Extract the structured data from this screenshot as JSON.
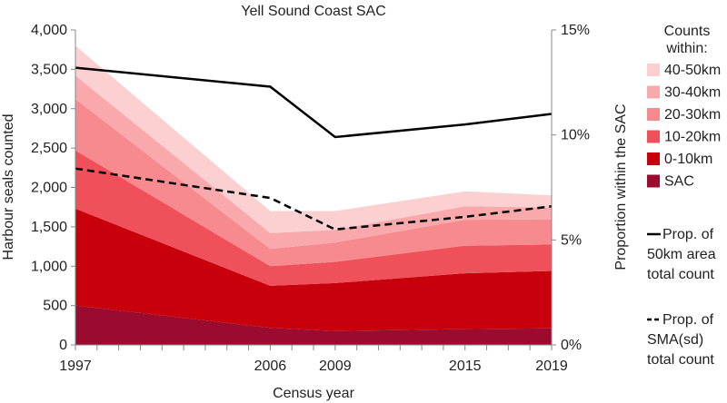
{
  "chart_data": {
    "type": "area",
    "title": "Yell Sound Coast SAC",
    "xlabel": "Census year",
    "ylabel": "Harbour seals counted",
    "y2label": "Proportion within the SAC",
    "x": [
      1997,
      2006,
      2009,
      2015,
      2019
    ],
    "x_ticks": [
      "1997",
      "2006",
      "2009",
      "2015",
      "2019"
    ],
    "xlim": [
      1997,
      2019
    ],
    "ylim": [
      0,
      4000
    ],
    "y_ticks": [
      "0",
      "500",
      "1,000",
      "1,500",
      "2,000",
      "2,500",
      "3,000",
      "3,500",
      "4,000"
    ],
    "y2lim": [
      0,
      15
    ],
    "y2_ticks": [
      "0%",
      "5%",
      "10%",
      "15%"
    ],
    "legend_title": "Counts within:",
    "stacked_series": [
      {
        "name": "SAC",
        "color": "#9b0a2f",
        "values": [
          500,
          215,
          175,
          200,
          210
        ]
      },
      {
        "name": "0-10km",
        "color": "#c8000b",
        "values": [
          1230,
          535,
          610,
          710,
          730
        ]
      },
      {
        "name": "10-20km",
        "color": "#f0505a",
        "values": [
          740,
          250,
          270,
          350,
          335
        ]
      },
      {
        "name": "20-30km",
        "color": "#f78a8e",
        "values": [
          650,
          220,
          245,
          330,
          320
        ]
      },
      {
        "name": "30-40km",
        "color": "#f9a9ac",
        "values": [
          300,
          200,
          160,
          170,
          150
        ]
      },
      {
        "name": "40-50km",
        "color": "#fccfd1",
        "values": [
          380,
          280,
          240,
          190,
          155
        ]
      }
    ],
    "line_series": [
      {
        "name": "Prop. of 50km area total count",
        "legend_lines": [
          "Prop. of",
          "50km area",
          "total count"
        ],
        "style": "solid",
        "values": [
          13.2,
          12.3,
          9.9,
          10.5,
          11.0
        ]
      },
      {
        "name": "Prop. of SMA(sd) total count",
        "legend_lines": [
          "Prop. of",
          "SMA(sd)",
          "total count"
        ],
        "style": "dashed",
        "values": [
          8.4,
          7.0,
          5.5,
          6.1,
          6.6
        ]
      }
    ]
  }
}
